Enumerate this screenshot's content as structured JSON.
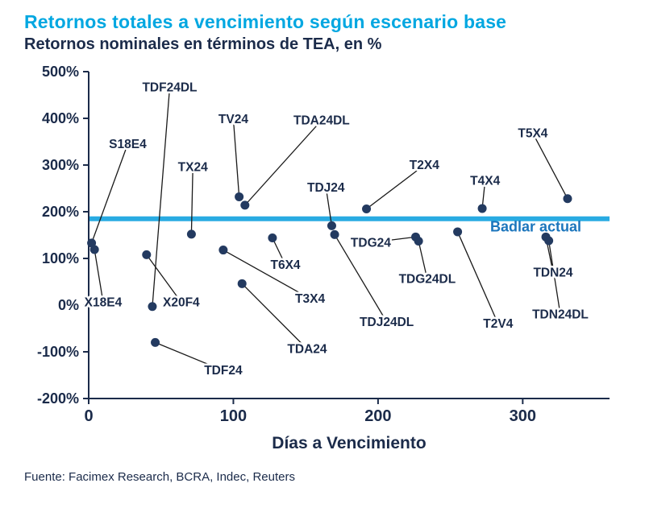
{
  "colors": {
    "title": "#00a7e1",
    "text": "#1b2b4a",
    "point": "#233a60",
    "leader": "#1a1a1a",
    "badlar_line": "#29abe2",
    "badlar_text": "#1b75bc"
  },
  "source": "Fuente: Facimex Research, BCRA, Indec, Reuters",
  "chart_data": {
    "type": "scatter",
    "title": "Retornos totales a vencimiento según escenario base",
    "subtitle": "Retornos nominales en términos de TEA, en %",
    "xlabel": "Días a Vencimiento",
    "ylabel": "",
    "xlim": [
      0,
      360
    ],
    "ylim": [
      -200,
      500
    ],
    "grid": false,
    "legend": false,
    "x_ticks": [
      {
        "value": 0,
        "label": "0"
      },
      {
        "value": 100,
        "label": "100"
      },
      {
        "value": 200,
        "label": "200"
      },
      {
        "value": 300,
        "label": "300"
      }
    ],
    "y_ticks": [
      {
        "value": 500,
        "label": "500%"
      },
      {
        "value": 400,
        "label": "400%"
      },
      {
        "value": 300,
        "label": "300%"
      },
      {
        "value": 200,
        "label": "200%"
      },
      {
        "value": 100,
        "label": "100%"
      },
      {
        "value": 0,
        "label": "0%"
      },
      {
        "value": -100,
        "label": "-100%"
      },
      {
        "value": -200,
        "label": "-200%"
      }
    ],
    "reference_line": {
      "value": 185,
      "label": "Badlar actual",
      "label_x": 309,
      "label_y": 166
    },
    "points": [
      {
        "name": "S18E4",
        "x": 2,
        "y": 133,
        "label_x": 27,
        "label_y": 345
      },
      {
        "name": "X18E4",
        "x": 4,
        "y": 119,
        "label_x": 10,
        "label_y": 6
      },
      {
        "name": "X20F4",
        "x": 40,
        "y": 108,
        "label_x": 64,
        "label_y": 6
      },
      {
        "name": "TDF24DL",
        "x": 44,
        "y": -3,
        "label_x": 56,
        "label_y": 466
      },
      {
        "name": "TDF24",
        "x": 46,
        "y": -80,
        "label_x": 93,
        "label_y": -140
      },
      {
        "name": "TX24",
        "x": 71,
        "y": 152,
        "label_x": 72,
        "label_y": 296
      },
      {
        "name": "T3X4",
        "x": 93,
        "y": 118,
        "label_x": 153,
        "label_y": 14
      },
      {
        "name": "TDA24",
        "x": 106,
        "y": 46,
        "label_x": 151,
        "label_y": -94
      },
      {
        "name": "TV24",
        "x": 104,
        "y": 232,
        "label_x": 100,
        "label_y": 398
      },
      {
        "name": "TDA24DL",
        "x": 108,
        "y": 214,
        "label_x": 161,
        "label_y": 396
      },
      {
        "name": "T6X4",
        "x": 127,
        "y": 144,
        "label_x": 136,
        "label_y": 86
      },
      {
        "name": "TDJ24",
        "x": 168,
        "y": 170,
        "label_x": 164,
        "label_y": 252
      },
      {
        "name": "TDJ24DL",
        "x": 170,
        "y": 151,
        "label_x": 206,
        "label_y": -36
      },
      {
        "name": "T2X4",
        "x": 192,
        "y": 206,
        "label_x": 232,
        "label_y": 300
      },
      {
        "name": "TDG24",
        "x": 226,
        "y": 146,
        "label_x": 195,
        "label_y": 134
      },
      {
        "name": "TDG24DL",
        "x": 228,
        "y": 137,
        "label_x": 234,
        "label_y": 56
      },
      {
        "name": "T2V4",
        "x": 255,
        "y": 157,
        "label_x": 283,
        "label_y": -40
      },
      {
        "name": "T4X4",
        "x": 272,
        "y": 207,
        "label_x": 274,
        "label_y": 266
      },
      {
        "name": "T5X4",
        "x": 331,
        "y": 228,
        "label_x": 307,
        "label_y": 368
      },
      {
        "name": "TDN24",
        "x": 316,
        "y": 146,
        "label_x": 321,
        "label_y": 70
      },
      {
        "name": "TDN24DL",
        "x": 318,
        "y": 138,
        "label_x": 326,
        "label_y": -20
      }
    ]
  }
}
